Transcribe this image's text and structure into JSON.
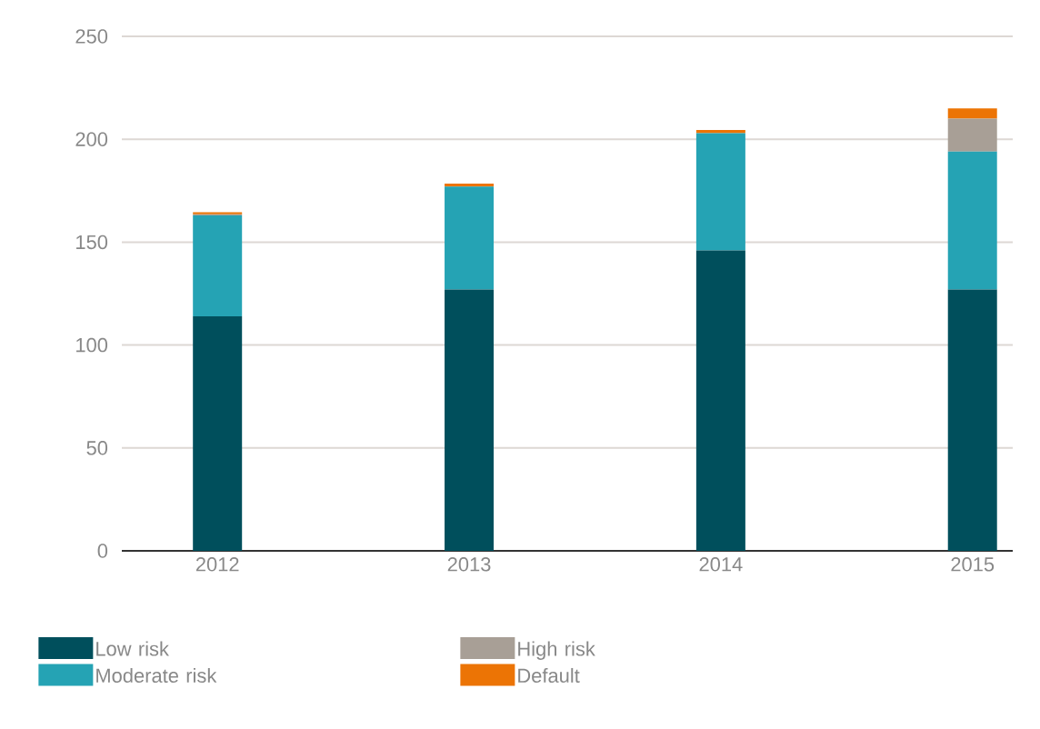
{
  "chart_data": {
    "type": "bar",
    "stacked": true,
    "categories": [
      "2012",
      "2013",
      "2014",
      "2015"
    ],
    "series": [
      {
        "name": "Low risk",
        "color": "#004f5c",
        "values": [
          114,
          127,
          146,
          127
        ]
      },
      {
        "name": "Moderate risk",
        "color": "#25a3b4",
        "values": [
          49,
          50,
          57,
          67
        ]
      },
      {
        "name": "High risk",
        "color": "#a89f96",
        "values": [
          0.5,
          0,
          0,
          16
        ]
      },
      {
        "name": "Default",
        "color": "#ec7405",
        "values": [
          1,
          1.5,
          1.5,
          5
        ]
      }
    ],
    "ylim": [
      0,
      250
    ],
    "yticks": [
      0,
      50,
      100,
      150,
      200,
      250
    ],
    "grid": "y",
    "legend": "bottom"
  }
}
